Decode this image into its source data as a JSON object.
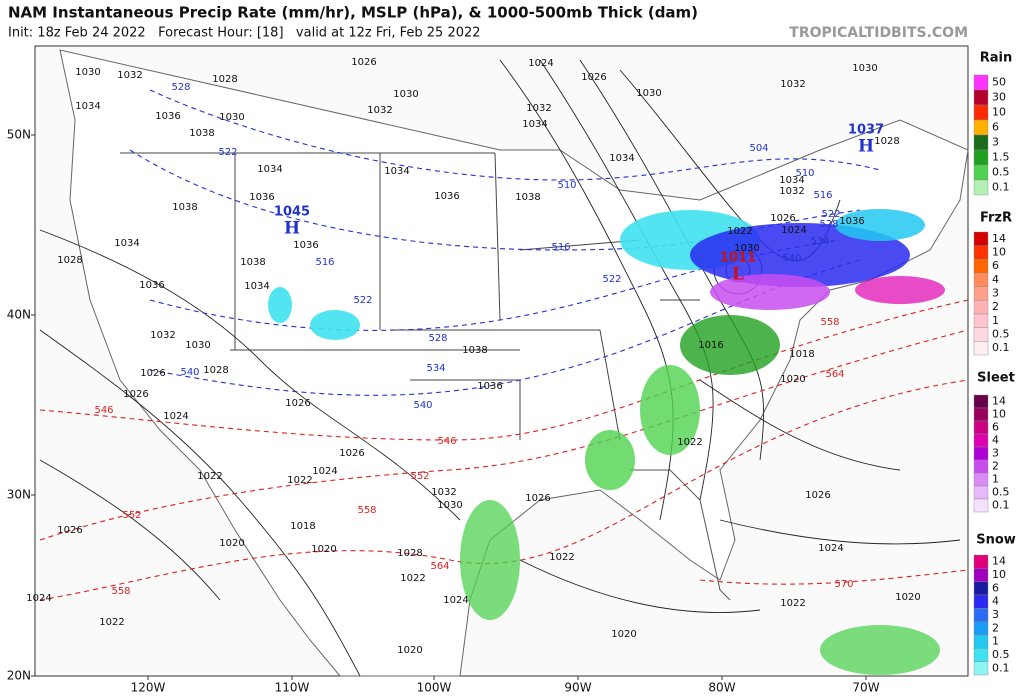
{
  "header": {
    "title": "NAM Instantaneous Precip Rate (mm/hr), MSLP (hPa), & 1000-500mb Thick (dam)",
    "subtitle": "Init: 18z Feb 24 2022   Forecast Hour: [18]   valid at 12z Fri, Feb 25 2022",
    "site": "TROPICALTIDBITS.COM"
  },
  "axes": {
    "latitudes": [
      "50N",
      "40N",
      "30N",
      "20N"
    ],
    "longitudes": [
      "120W",
      "110W",
      "100W",
      "90W",
      "80W",
      "70W"
    ]
  },
  "legend": [
    {
      "title": "Rain",
      "ticks": [
        50,
        30,
        10,
        6,
        3,
        1.5,
        0.5,
        0.1
      ],
      "colors": [
        "#ff33ff",
        "#b3002d",
        "#ff2a00",
        "#ffb000",
        "#1a6b1a",
        "#20a020",
        "#4fd24f",
        "#b4f0b4"
      ]
    },
    {
      "title": "FrzR",
      "ticks": [
        14,
        10,
        6,
        4,
        3,
        2,
        1,
        0.5,
        0.1
      ],
      "colors": [
        "#d40000",
        "#ff3300",
        "#ff6600",
        "#ff8c5a",
        "#ff9f8c",
        "#ffb2b2",
        "#ffc4cf",
        "#ffd8e0",
        "#ffeef2"
      ]
    },
    {
      "title": "Sleet",
      "ticks": [
        14,
        10,
        6,
        4,
        3,
        2,
        1,
        0.5,
        0.1
      ],
      "colors": [
        "#66004d",
        "#99005e",
        "#cc0080",
        "#e000b0",
        "#b000d8",
        "#c84df0",
        "#d98cf5",
        "#e8b8fa",
        "#f5e0fd"
      ]
    },
    {
      "title": "Snow",
      "ticks": [
        14,
        10,
        6,
        4,
        3,
        2,
        1,
        0.5,
        0.1
      ],
      "colors": [
        "#e0007a",
        "#a000c0",
        "#1a1aa0",
        "#2a2af0",
        "#2b6cf5",
        "#1a9cf5",
        "#22c8f0",
        "#3fe2f0",
        "#8ef5f5"
      ]
    }
  ],
  "pressure_centers": [
    {
      "value": "1045",
      "symbol": "H"
    },
    {
      "value": "1037",
      "symbol": "H"
    },
    {
      "value": "1011",
      "symbol": "L"
    }
  ],
  "isobar_labels": [
    "1030",
    "1032",
    "1028",
    "1026",
    "1024",
    "1026",
    "1030",
    "1032",
    "1030",
    "1034",
    "1036",
    "1038",
    "1030",
    "1032",
    "1030",
    "1032",
    "1034",
    "1034",
    "1034",
    "1034",
    "1036",
    "1038",
    "1038",
    "1036",
    "1034",
    "1028",
    "1036",
    "1036",
    "1038",
    "1034",
    "1032",
    "1030",
    "1028",
    "1026",
    "1026",
    "1024",
    "1026",
    "1026",
    "1024",
    "1022",
    "1022",
    "1026",
    "1020",
    "1018",
    "1020",
    "1028",
    "1022",
    "1024",
    "1022",
    "1024",
    "1020",
    "1020",
    "1022",
    "1026",
    "1032",
    "1030",
    "1036",
    "1038",
    "1022",
    "1020",
    "1018",
    "1016",
    "1026",
    "1024",
    "1022",
    "1020",
    "1026",
    "1024",
    "1022",
    "1030",
    "1032",
    "1034",
    "1028",
    "1036"
  ],
  "thickness_labels": [
    "528",
    "522",
    "516",
    "510",
    "516",
    "522",
    "522",
    "528",
    "534",
    "540",
    "540",
    "504",
    "510",
    "516",
    "522",
    "528",
    "534",
    "540",
    "546",
    "546",
    "552",
    "552",
    "558",
    "558",
    "564",
    "564",
    "558",
    "570"
  ]
}
